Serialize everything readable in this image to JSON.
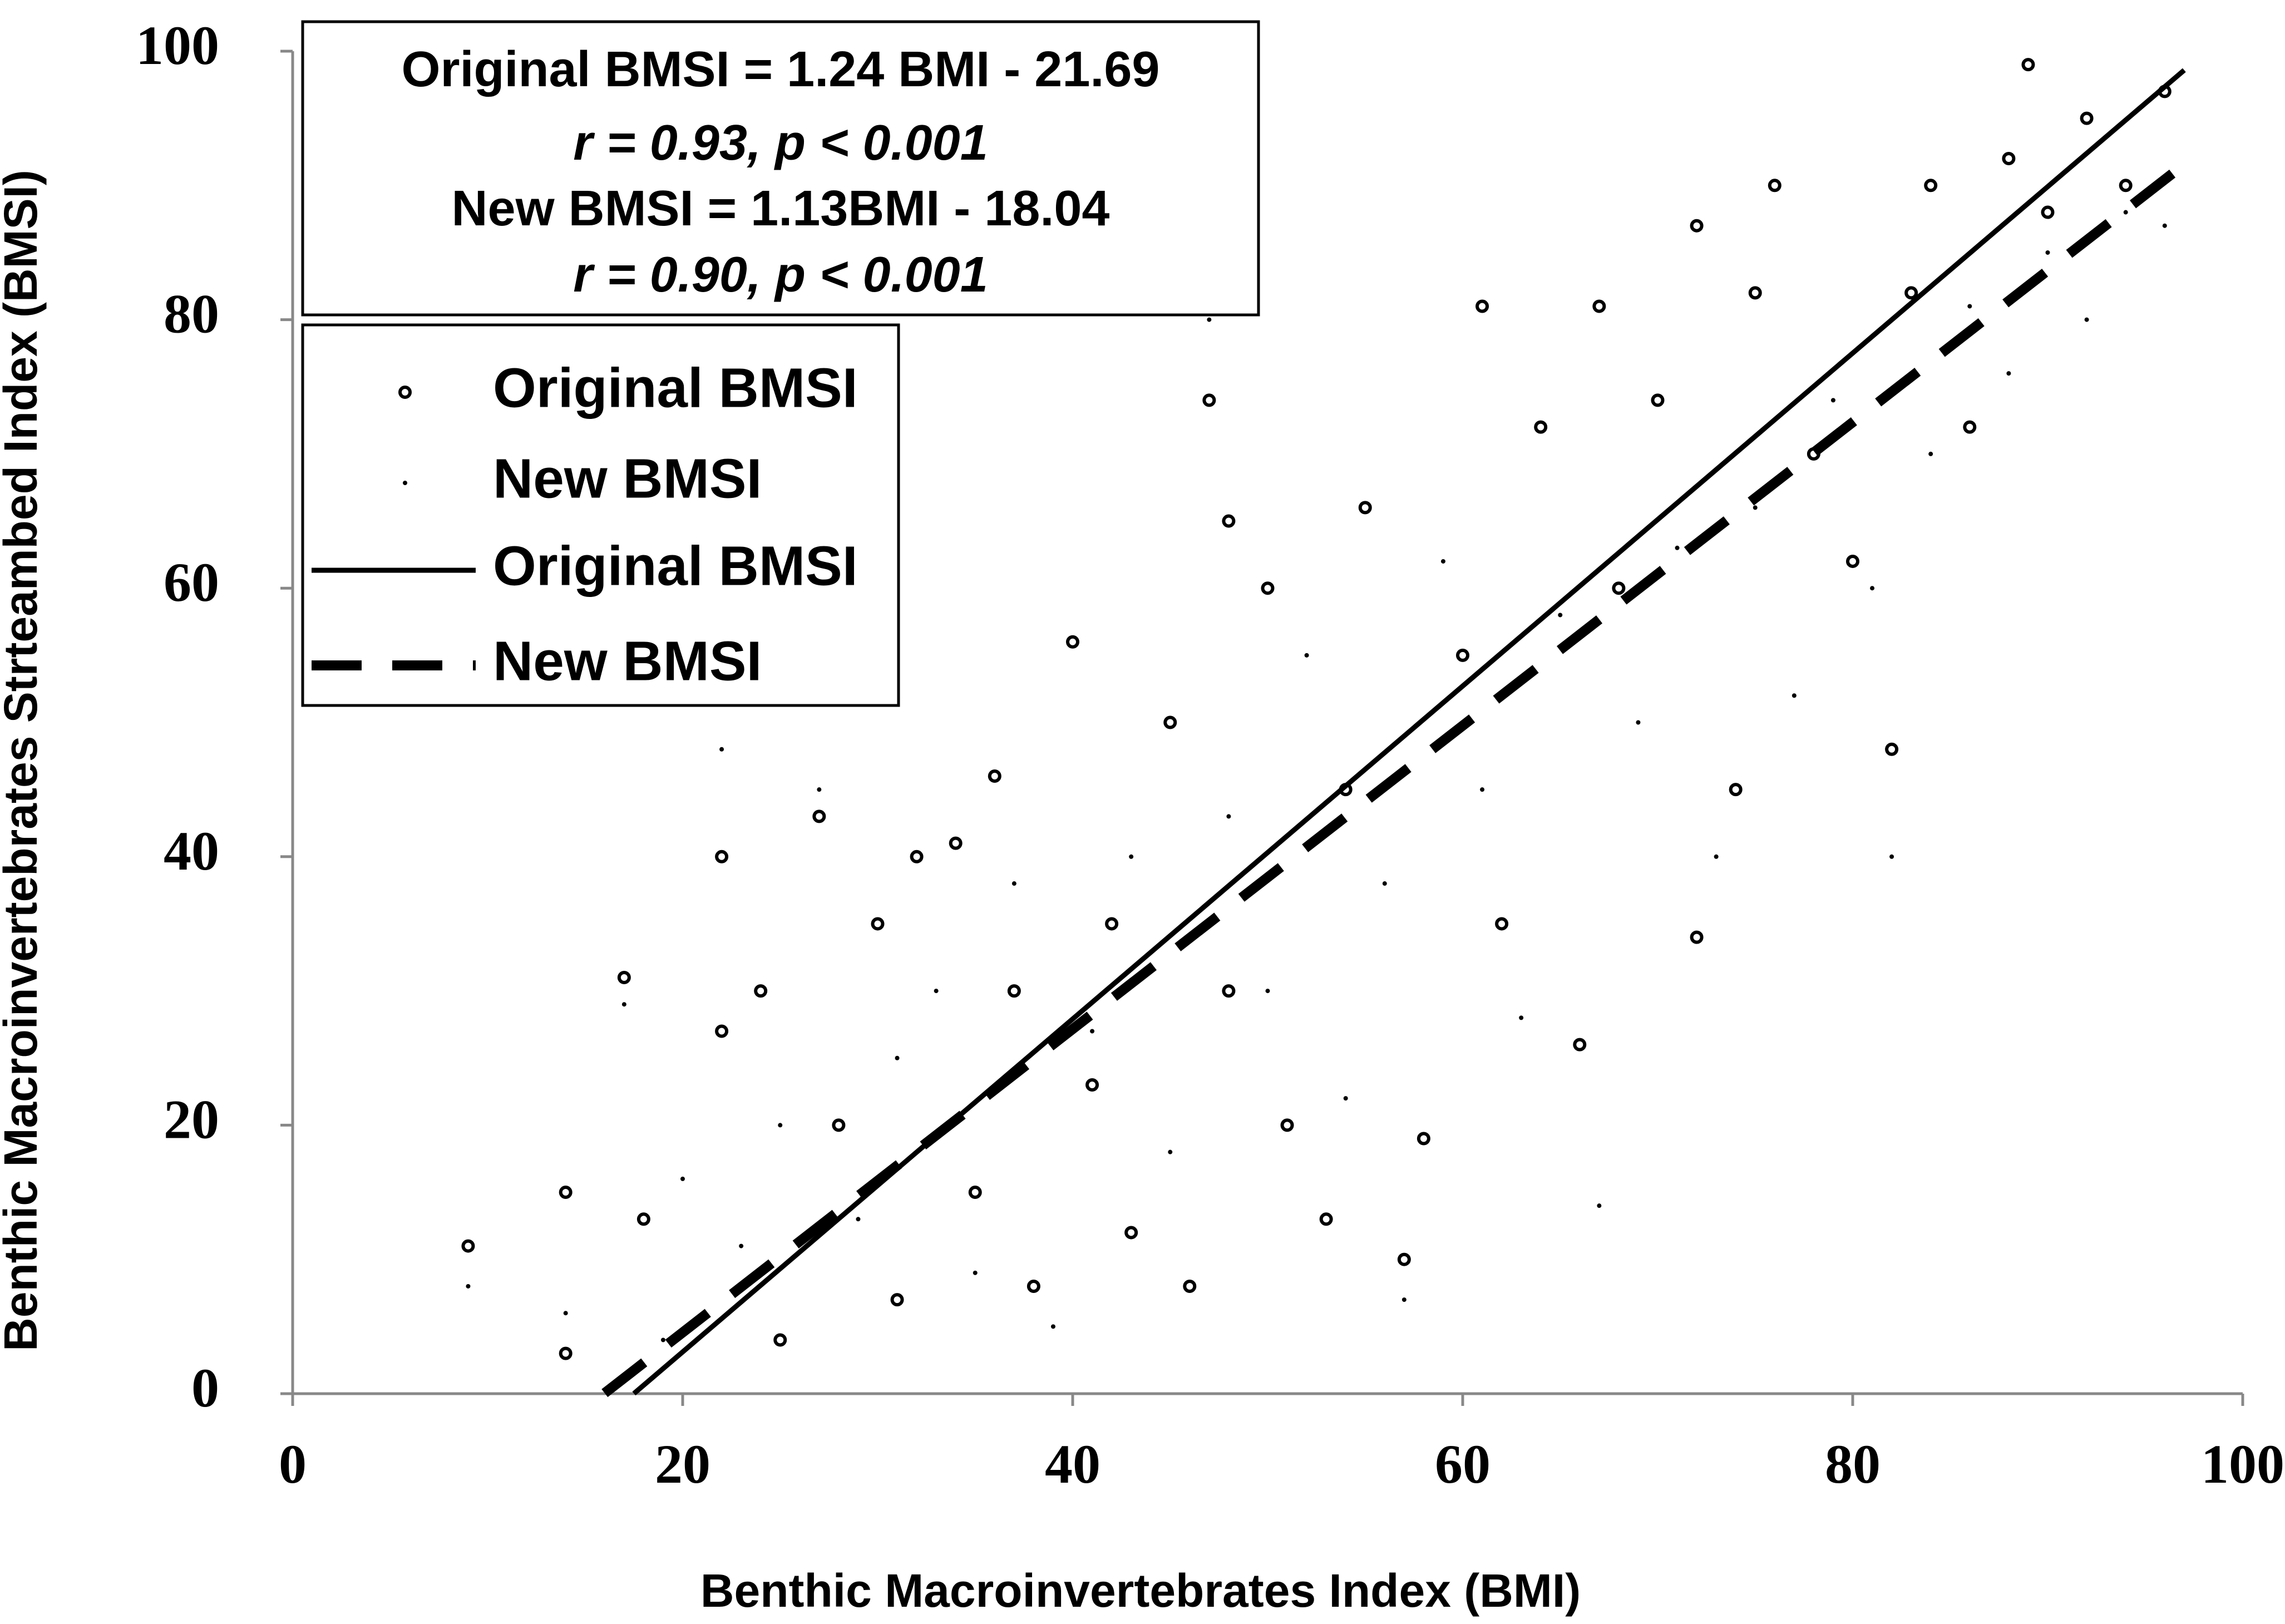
{
  "chart_data": {
    "type": "scatter",
    "xlabel": "Benthic Macroinvertebrates Index (BMI)",
    "ylabel": "Benthic Macroinvertebrates Strteambed Index (BMSI)",
    "annotations": [
      "Original BMSI = 1.24 BMI - 21.69",
      "r = 0.93, p < 0.001",
      "New BMSI = 1.13BMI - 18.04",
      "r = 0.90, p < 0.001"
    ],
    "xlim": [
      0,
      100
    ],
    "ylim": [
      0,
      100
    ],
    "xticks": [
      0,
      20,
      40,
      60,
      80,
      100
    ],
    "yticks": [
      0,
      20,
      40,
      60,
      80,
      100
    ],
    "grid": false,
    "series": [
      {
        "name": "Original BMSI",
        "kind": "scatter",
        "marker": "circle",
        "color": "#000000",
        "x": [
          9,
          14,
          14,
          17,
          18,
          22,
          22,
          24,
          25,
          27,
          28,
          30,
          31,
          32,
          34,
          35,
          36,
          37,
          38,
          40,
          41,
          42,
          43,
          45,
          46,
          47,
          48,
          48,
          50,
          51,
          53,
          54,
          55,
          57,
          58,
          60,
          61,
          62,
          64,
          66,
          67,
          68,
          70,
          72,
          72,
          74,
          75,
          76,
          78,
          80,
          82,
          83,
          84,
          86,
          88,
          89,
          90,
          92,
          94,
          96
        ],
        "values": [
          11,
          15,
          3,
          31,
          13,
          40,
          27,
          30,
          4,
          43,
          20,
          35,
          7,
          40,
          41,
          15,
          46,
          30,
          8,
          56,
          23,
          35,
          12,
          50,
          8,
          74,
          65,
          30,
          60,
          20,
          13,
          45,
          66,
          10,
          19,
          55,
          81,
          35,
          72,
          26,
          81,
          60,
          74,
          34,
          87,
          45,
          82,
          90,
          70,
          62,
          48,
          82,
          90,
          72,
          92,
          99,
          88,
          95,
          90,
          97
        ]
      },
      {
        "name": "New BMSI",
        "kind": "scatter",
        "marker": "dot",
        "color": "#000000",
        "x": [
          9,
          14,
          17,
          19,
          20,
          22,
          23,
          25,
          27,
          29,
          31,
          33,
          35,
          37,
          39,
          41,
          43,
          45,
          47,
          48,
          50,
          52,
          54,
          56,
          57,
          59,
          61,
          63,
          65,
          67,
          69,
          71,
          73,
          75,
          77,
          79,
          81,
          82,
          84,
          86,
          88,
          90,
          92,
          94,
          96
        ],
        "values": [
          8,
          6,
          29,
          4,
          16,
          48,
          11,
          20,
          45,
          13,
          25,
          30,
          9,
          38,
          5,
          27,
          40,
          18,
          80,
          43,
          30,
          55,
          22,
          38,
          7,
          62,
          45,
          28,
          58,
          14,
          50,
          63,
          40,
          66,
          52,
          74,
          60,
          40,
          70,
          81,
          76,
          85,
          80,
          88,
          87
        ]
      },
      {
        "name": "Original BMSI",
        "kind": "line",
        "dash": false,
        "color": "#000000",
        "x": [
          17.5,
          97
        ],
        "values": [
          0.01,
          98.59
        ]
      },
      {
        "name": "New BMSI",
        "kind": "line",
        "dash": true,
        "color": "#000000",
        "x": [
          16,
          97
        ],
        "values": [
          0.04,
          91.57
        ]
      }
    ]
  }
}
